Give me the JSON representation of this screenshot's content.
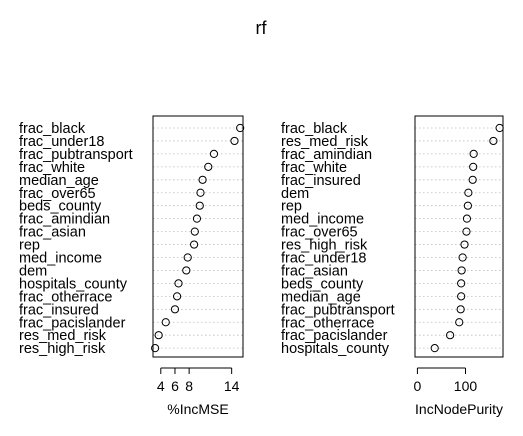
{
  "chart_data": [
    {
      "type": "scatter",
      "title": "rf",
      "xlabel": "%IncMSE",
      "ylabel": "",
      "xlim": [
        2.9,
        15.6
      ],
      "xticks": [
        4,
        6,
        8,
        14
      ],
      "xtick_labels": [
        "4",
        "6",
        "8",
        "14"
      ],
      "grid": "dotted horizontal",
      "categories": [
        "frac_black",
        "frac_under18",
        "frac_pubtransport",
        "frac_white",
        "median_age",
        "frac_over65",
        "beds_county",
        "frac_amindian",
        "frac_asian",
        "rep",
        "med_income",
        "dem",
        "hospitals_county",
        "frac_otherrace",
        "frac_insured",
        "frac_pacislander",
        "res_med_risk",
        "res_high_risk"
      ],
      "values": [
        15.2,
        14.4,
        11.5,
        10.7,
        9.9,
        9.6,
        9.5,
        9.1,
        8.8,
        8.7,
        7.8,
        7.6,
        6.5,
        6.3,
        6.0,
        4.7,
        3.7,
        3.2
      ]
    },
    {
      "type": "scatter",
      "title": "",
      "xlabel": "IncNodePurity",
      "ylabel": "",
      "xlim": [
        -5,
        178
      ],
      "xticks": [
        0,
        100
      ],
      "xtick_labels": [
        "0",
        "100"
      ],
      "grid": "dotted horizontal",
      "categories": [
        "frac_black",
        "res_med_risk",
        "frac_amindian",
        "frac_white",
        "frac_insured",
        "dem",
        "rep",
        "med_income",
        "frac_over65",
        "res_high_risk",
        "frac_under18",
        "frac_asian",
        "beds_county",
        "median_age",
        "frac_pubtransport",
        "frac_otherrace",
        "frac_pacislander",
        "hospitals_county"
      ],
      "values": [
        171,
        158,
        117,
        116,
        115,
        106,
        105,
        103,
        102,
        98,
        94,
        92,
        91,
        91,
        90,
        87,
        68,
        36
      ]
    }
  ]
}
